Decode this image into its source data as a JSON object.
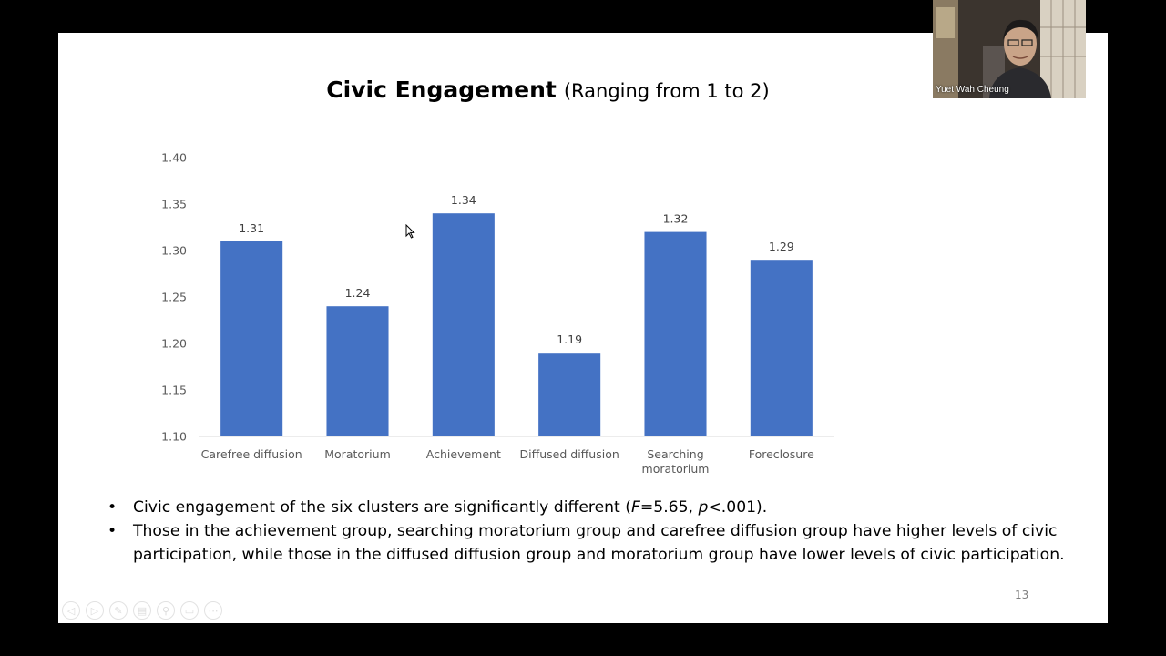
{
  "slide": {
    "title_main": "Civic Engagement",
    "title_sub": "(Ranging from 1 to 2)",
    "page_number": "13",
    "bullets": [
      {
        "parts": [
          {
            "text": "Civic engagement of the six clusters are significantly different (",
            "italic": false
          },
          {
            "text": "F",
            "italic": true
          },
          {
            "text": "=5.65, ",
            "italic": false
          },
          {
            "text": "p",
            "italic": true
          },
          {
            "text": "<.001).",
            "italic": false
          }
        ]
      },
      {
        "parts": [
          {
            "text": "Those in the achievement group, searching moratorium group and carefree diffusion group have higher levels of civic participation, while those in the diffused diffusion group and moratorium group have lower levels of civic participation.",
            "italic": false
          }
        ]
      }
    ],
    "bullet_char": "•"
  },
  "chart_data": {
    "type": "bar",
    "categories": [
      "Carefree diffusion",
      "Moratorium",
      "Achievement",
      "Diffused diffusion",
      "Searching moratorium",
      "Foreclosure"
    ],
    "values": [
      1.31,
      1.24,
      1.34,
      1.19,
      1.32,
      1.29
    ],
    "data_labels": [
      "1.31",
      "1.24",
      "1.34",
      "1.19",
      "1.32",
      "1.29"
    ],
    "title": "",
    "xlabel": "",
    "ylabel": "",
    "ylim": [
      1.1,
      1.4
    ],
    "yticks": [
      "1.10",
      "1.15",
      "1.20",
      "1.25",
      "1.30",
      "1.35",
      "1.40"
    ],
    "grid": false,
    "legend": "none",
    "bar_color": "#4472c4"
  },
  "video": {
    "participant_name": "Yuet Wah Cheung"
  },
  "toolbar": {
    "icons": [
      "prev-icon",
      "next-icon",
      "pen-icon",
      "slides-icon",
      "zoom-icon",
      "subtitles-icon",
      "more-icon"
    ],
    "glyphs": [
      "◁",
      "▷",
      "✎",
      "▤",
      "⚲",
      "▭",
      "⋯"
    ]
  }
}
